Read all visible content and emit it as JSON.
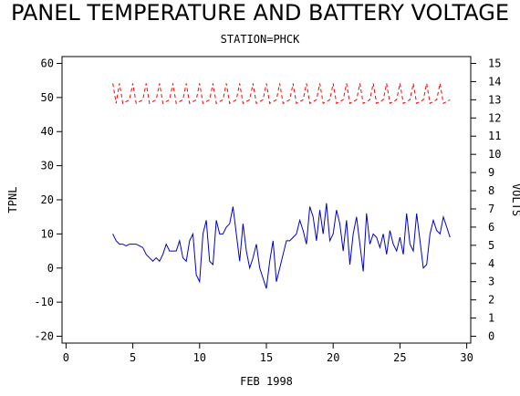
{
  "chart_data": {
    "type": "line",
    "title": "PANEL TEMPERATURE AND BATTERY VOLTAGE",
    "subtitle": "STATION=PHCK",
    "xlabel": "FEB 1998",
    "ylabel": "TPNL",
    "y2label": "VOLTS",
    "x": [
      3.5,
      3.75,
      4,
      4.25,
      4.5,
      4.75,
      5,
      5.25,
      5.5,
      5.75,
      6,
      6.25,
      6.5,
      6.75,
      7,
      7.25,
      7.5,
      7.75,
      8,
      8.25,
      8.5,
      8.75,
      9,
      9.25,
      9.5,
      9.75,
      10,
      10.25,
      10.5,
      10.75,
      11,
      11.25,
      11.5,
      11.75,
      12,
      12.25,
      12.5,
      12.75,
      13,
      13.25,
      13.5,
      13.75,
      14,
      14.25,
      14.5,
      14.75,
      15,
      15.25,
      15.5,
      15.75,
      16,
      16.25,
      16.5,
      16.75,
      17,
      17.25,
      17.5,
      17.75,
      18,
      18.25,
      18.5,
      18.75,
      19,
      19.25,
      19.5,
      19.75,
      20,
      20.25,
      20.5,
      20.75,
      21,
      21.25,
      21.5,
      21.75,
      22,
      22.25,
      22.5,
      22.75,
      23,
      23.25,
      23.5,
      23.75,
      24,
      24.25,
      24.5,
      24.75,
      25,
      25.25,
      25.5,
      25.75,
      26,
      26.25,
      26.5,
      26.75,
      27,
      27.25,
      27.5,
      27.75,
      28,
      28.25,
      28.5,
      28.75
    ],
    "series": [
      {
        "name": "TPNL",
        "color": "#0000cc",
        "dashed": false,
        "values": [
          10,
          8,
          7,
          7,
          6.5,
          7,
          7,
          7,
          6.5,
          6,
          4,
          3,
          2,
          3,
          2,
          4,
          7,
          5,
          5,
          5,
          8,
          3,
          2,
          8,
          10,
          -2,
          -4,
          10,
          14,
          2,
          1,
          14,
          10,
          10,
          12,
          13,
          18,
          10,
          2,
          13,
          5,
          0,
          3,
          7,
          0,
          -3,
          -6,
          2,
          8,
          -4,
          0,
          4,
          8,
          8,
          9,
          10,
          14,
          11,
          7,
          18,
          15,
          8,
          17,
          10,
          19,
          8,
          10,
          17,
          13,
          5,
          14,
          1,
          10,
          15,
          7,
          -1,
          16,
          7,
          10,
          9,
          6,
          10,
          4,
          11,
          7,
          5,
          9,
          4,
          16,
          7,
          5,
          16,
          8,
          0,
          1,
          10,
          14,
          11,
          10,
          15,
          12,
          9
        ]
      },
      {
        "name": "VOLTS",
        "color": "#ff0000",
        "dashed": true,
        "axis": "y2",
        "values": [
          13.9,
          12.8,
          13.9,
          12.8,
          12.9,
          13.0,
          13.9,
          12.8,
          12.9,
          13.0,
          13.9,
          12.8,
          12.9,
          13.0,
          13.9,
          12.8,
          12.9,
          13.0,
          13.9,
          12.8,
          12.9,
          13.0,
          13.9,
          12.8,
          12.9,
          13.0,
          13.9,
          12.8,
          12.9,
          13.0,
          13.9,
          12.8,
          12.9,
          13.0,
          13.9,
          12.8,
          12.9,
          13.0,
          13.9,
          12.8,
          12.9,
          13.0,
          13.9,
          12.8,
          12.9,
          13.0,
          13.9,
          12.8,
          12.9,
          13.0,
          13.9,
          12.8,
          12.9,
          13.0,
          13.9,
          12.8,
          12.9,
          13.0,
          13.9,
          12.8,
          12.9,
          13.0,
          13.9,
          12.8,
          12.9,
          13.0,
          13.9,
          12.8,
          12.9,
          13.0,
          13.9,
          12.8,
          12.9,
          13.0,
          13.9,
          12.8,
          12.9,
          13.0,
          13.9,
          12.8,
          12.9,
          13.0,
          13.9,
          12.8,
          12.9,
          13.0,
          13.9,
          12.8,
          12.9,
          13.0,
          13.9,
          12.8,
          12.9,
          13.0,
          13.9,
          12.8,
          12.9,
          13.0,
          13.9,
          12.8,
          12.9,
          13.0
        ]
      }
    ],
    "xlim": [
      -0.3,
      30.3
    ],
    "xticks": [
      0,
      5,
      10,
      15,
      20,
      25,
      30
    ],
    "ylim": [
      -22,
      62
    ],
    "yticks": [
      -20,
      -10,
      0,
      10,
      20,
      30,
      40,
      50,
      60
    ],
    "y2lim": [
      -0.375,
      15.375
    ],
    "y2ticks": [
      0,
      1,
      2,
      3,
      4,
      5,
      6,
      7,
      8,
      9,
      10,
      11,
      12,
      13,
      14,
      15
    ]
  }
}
